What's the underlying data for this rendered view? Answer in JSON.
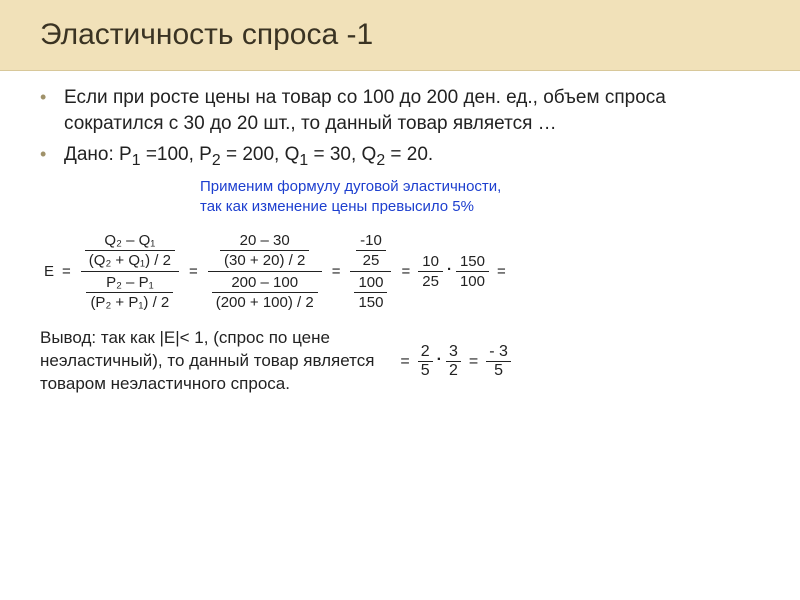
{
  "title": "Эластичность спроса -1",
  "bullet1": "Если при росте цены на товар со 100 до 200 ден. ед., объем спроса сократился с 30 до 20 шт., то данный товар является …",
  "bullet2_prefix": "Дано: P",
  "given": {
    "p1_label": "1",
    "p1_val": " =100, P",
    "p2_label": "2",
    "p2_val": " = 200, Q",
    "q1_label": "1",
    "q1_val": " = 30, Q",
    "q2_label": "2",
    "q2_val": " = 20."
  },
  "note_line1": "Применим формулу дуговой эластичности,",
  "note_line2": "так как изменение цены превысило 5%",
  "formula": {
    "E": "E",
    "sym_num_top": "Q₂ – Q₁",
    "sym_num_bot": "(Q₂ + Q₁) / 2",
    "sym_den_top": "P₂ – P₁",
    "sym_den_bot": "(P₂ + P₁) / 2",
    "val_num_top": "20 – 30",
    "val_num_bot": "(30 + 20) / 2",
    "val_den_top": "200 – 100",
    "val_den_bot": "(200 + 100) / 2",
    "s1_top": "-10",
    "s1_bot": "25",
    "s2_top": "100",
    "s2_bot": "150",
    "p1_top": "10",
    "p1_bot": "25",
    "p2_top": "150",
    "p2_bot": "100"
  },
  "conclusion": {
    "line1": "Вывод: так как |E|< 1, (спрос по цене",
    "line2": "неэластичный), то данный товар является",
    "line3": "товаром неэластичного спроса.",
    "f1_top": "2",
    "f1_bot": "5",
    "f2_top": "3",
    "f2_bot": "2",
    "f3_top": "- 3",
    "f3_bot": "5"
  },
  "colors": {
    "title_bg": "#f1e1b9",
    "title_text": "#3a3323",
    "bullet_color": "#a0926a",
    "note_color": "#1d3fcf",
    "body_text": "#222222"
  },
  "typography": {
    "title_fontsize": 30,
    "body_fontsize": 19,
    "note_fontsize": 15,
    "formula_fontsize": 15
  }
}
